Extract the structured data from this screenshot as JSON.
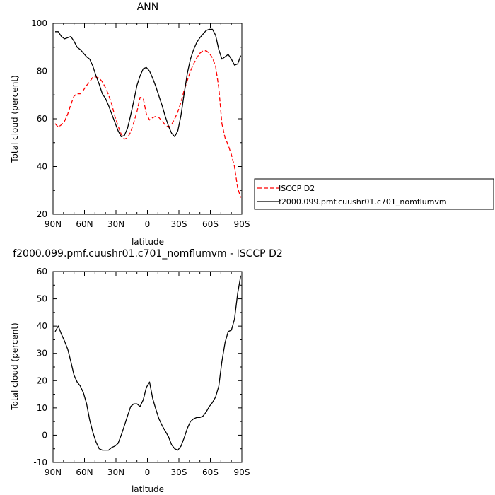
{
  "chart_data": [
    {
      "type": "line",
      "title": "ANN",
      "xlabel": "latitude",
      "ylabel": "Total cloud (percent)",
      "xlim": [
        90,
        -90
      ],
      "ylim": [
        20,
        100
      ],
      "x_ticks": [
        90,
        60,
        30,
        0,
        -30,
        -60,
        -90
      ],
      "x_ticklabels": [
        "90N",
        "60N",
        "30N",
        "0",
        "30S",
        "60S",
        "90S"
      ],
      "y_ticks": [
        20,
        40,
        60,
        80,
        100
      ],
      "legend_position": "right",
      "series": [
        {
          "name": "ISCCP D2",
          "color": "#ff0000",
          "style": "dashed",
          "x": [
            88,
            85,
            82,
            79,
            76,
            73,
            70,
            67,
            64,
            61,
            58,
            55,
            52,
            49,
            46,
            43,
            40,
            37,
            34,
            31,
            28,
            25,
            22,
            19,
            16,
            13,
            10,
            7,
            4,
            1,
            -2,
            -5,
            -8,
            -11,
            -14,
            -17,
            -20,
            -23,
            -26,
            -29,
            -32,
            -35,
            -38,
            -41,
            -44,
            -47,
            -50,
            -53,
            -56,
            -59,
            -62,
            -65,
            -68,
            -71,
            -74,
            -77,
            -80,
            -83,
            -86,
            -89
          ],
          "y": [
            58,
            56.5,
            57.5,
            59,
            62,
            66,
            69.5,
            70.5,
            70.5,
            72,
            74,
            75.5,
            77.5,
            77.5,
            77,
            75.5,
            73,
            70,
            66,
            61,
            57,
            53.5,
            51.5,
            52,
            54.5,
            58.5,
            63,
            69,
            68.5,
            62,
            59.5,
            60.5,
            61,
            60.5,
            59,
            57.5,
            56.5,
            57.5,
            60,
            63,
            67,
            72,
            76,
            80,
            83,
            85.5,
            87.5,
            88.5,
            88.5,
            87.5,
            85.5,
            82,
            73,
            58,
            52,
            49,
            45,
            40,
            31,
            27
          ]
        },
        {
          "name": "f2000.099.pmf.cuushr01.c701_nomflumvm",
          "color": "#000000",
          "style": "solid",
          "x": [
            88,
            85,
            82,
            79,
            76,
            73,
            70,
            67,
            64,
            61,
            58,
            55,
            52,
            49,
            46,
            43,
            40,
            37,
            34,
            31,
            28,
            25,
            22,
            19,
            16,
            13,
            10,
            7,
            4,
            1,
            -2,
            -5,
            -8,
            -11,
            -14,
            -17,
            -20,
            -23,
            -26,
            -29,
            -32,
            -35,
            -38,
            -41,
            -44,
            -47,
            -50,
            -53,
            -56,
            -59,
            -62,
            -65,
            -68,
            -71,
            -74,
            -77,
            -80,
            -83,
            -86,
            -89
          ],
          "y": [
            96.5,
            96.5,
            94.5,
            93.5,
            94,
            94.5,
            92.5,
            90,
            89,
            87.5,
            86,
            85,
            82,
            78,
            74.5,
            70.5,
            68.5,
            65.5,
            62,
            58.5,
            55,
            52.5,
            53,
            56,
            61.5,
            67.5,
            74,
            78,
            81,
            81.5,
            80,
            77,
            73.5,
            69.5,
            65.5,
            61,
            57,
            54,
            52.5,
            55,
            61.5,
            70.5,
            79,
            85,
            89,
            92,
            94,
            95.5,
            97,
            97.5,
            97.5,
            95,
            89,
            85,
            86,
            87,
            85,
            82.5,
            83,
            86.5
          ]
        }
      ]
    },
    {
      "type": "line",
      "title": "f2000.099.pmf.cuushr01.c701_nomflumvm - ISCCP D2",
      "xlabel": "latitude",
      "ylabel": "Total cloud (percent)",
      "xlim": [
        90,
        -90
      ],
      "ylim": [
        -10,
        60
      ],
      "x_ticks": [
        90,
        60,
        30,
        0,
        -30,
        -60,
        -90
      ],
      "x_ticklabels": [
        "90N",
        "60N",
        "30N",
        "0",
        "30S",
        "60S",
        "90S"
      ],
      "y_ticks": [
        -10,
        0,
        10,
        20,
        30,
        40,
        50,
        60
      ],
      "series": [
        {
          "color": "#000000",
          "style": "solid",
          "x": [
            88,
            85,
            82,
            79,
            76,
            73,
            70,
            67,
            64,
            61,
            58,
            55,
            52,
            49,
            46,
            43,
            40,
            37,
            34,
            31,
            28,
            25,
            22,
            19,
            16,
            13,
            10,
            7,
            4,
            1,
            -2,
            -5,
            -8,
            -11,
            -14,
            -17,
            -20,
            -23,
            -26,
            -29,
            -32,
            -35,
            -38,
            -41,
            -44,
            -47,
            -50,
            -53,
            -56,
            -59,
            -62,
            -65,
            -68,
            -71,
            -74,
            -77,
            -80,
            -83,
            -86,
            -89
          ],
          "y": [
            38,
            40,
            37,
            34.5,
            31.5,
            27,
            22,
            19.5,
            18,
            15.5,
            11.5,
            5.5,
            1,
            -2.5,
            -5,
            -5.5,
            -5.5,
            -5.5,
            -4.5,
            -4,
            -3,
            0,
            3.5,
            7,
            10.5,
            11.5,
            11.5,
            10.5,
            13,
            17.5,
            19.5,
            13.5,
            9.5,
            6,
            3.5,
            1.5,
            -0.5,
            -3.5,
            -5,
            -5.5,
            -4,
            -1,
            2.5,
            5,
            6,
            6.5,
            6.5,
            7,
            8.5,
            10.5,
            12,
            14,
            18,
            27,
            34,
            38,
            38.5,
            42.5,
            52,
            58.5
          ]
        }
      ]
    }
  ]
}
